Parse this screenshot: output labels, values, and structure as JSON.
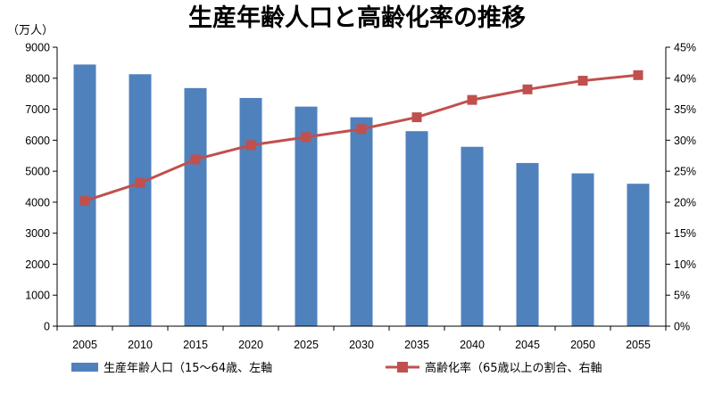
{
  "chart_data": {
    "type": "bar+line",
    "title": "生産年齢人口と高齢化率の推移",
    "y_left_unit": "（万人）",
    "categories": [
      "2005",
      "2010",
      "2015",
      "2020",
      "2025",
      "2030",
      "2035",
      "2040",
      "2045",
      "2050",
      "2055"
    ],
    "y_left": {
      "min": 0,
      "max": 9000,
      "step": 1000,
      "ticks": [
        "0",
        "1000",
        "2000",
        "3000",
        "4000",
        "5000",
        "6000",
        "7000",
        "8000",
        "9000"
      ]
    },
    "y_right": {
      "min": 0,
      "max": 45,
      "step": 5,
      "ticks": [
        "0%",
        "5%",
        "10%",
        "15%",
        "20%",
        "25%",
        "30%",
        "35%",
        "40%",
        "45%"
      ]
    },
    "series": [
      {
        "name": "生産年齢人口（15～64歳、左軸",
        "kind": "bar",
        "axis": "left",
        "color": "#4f81bd",
        "values": [
          8442,
          8129,
          7682,
          7363,
          7084,
          6740,
          6292,
          5787,
          5264,
          4930,
          4595
        ]
      },
      {
        "name": "高齢化率（65歳以上の割合、右軸",
        "kind": "line",
        "axis": "right",
        "color": "#c0504d",
        "values": [
          20.2,
          23.1,
          26.9,
          29.2,
          30.5,
          31.8,
          33.7,
          36.5,
          38.2,
          39.6,
          40.5
        ]
      }
    ],
    "grid": false,
    "legend_position": "bottom"
  }
}
